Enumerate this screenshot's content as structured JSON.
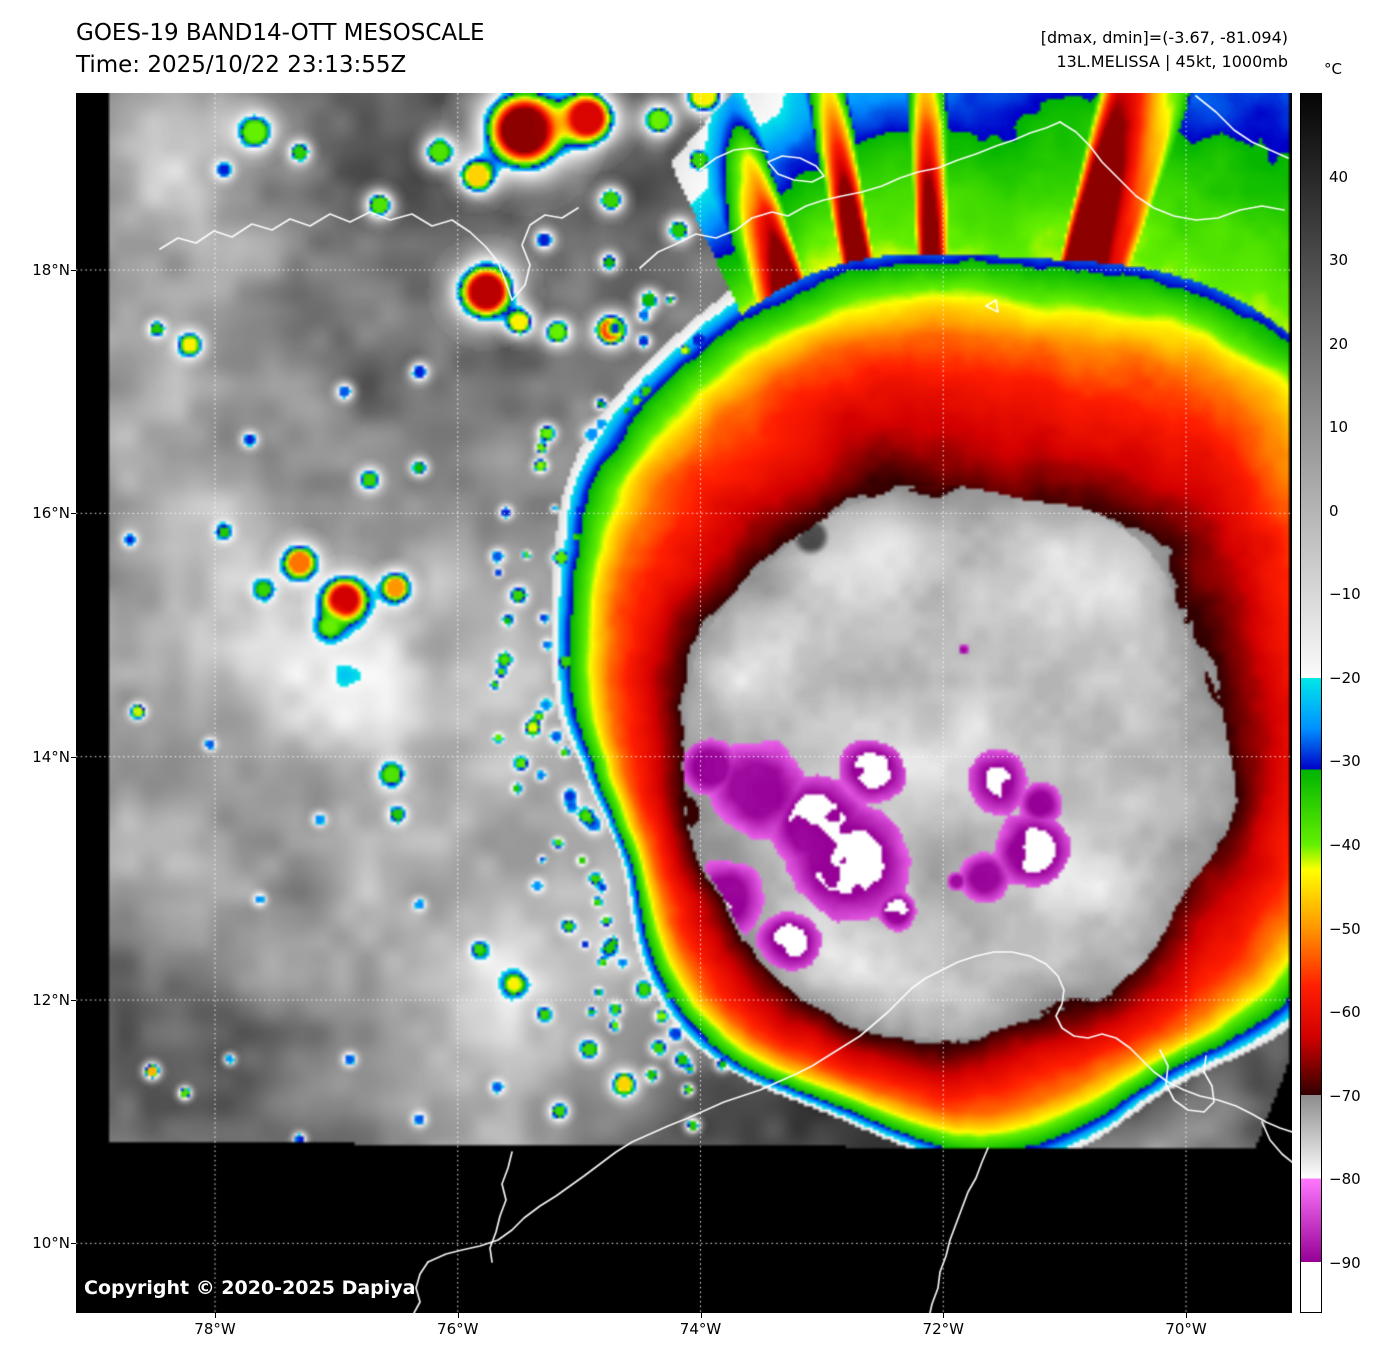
{
  "header": {
    "title": "GOES-19 BAND14-OTT MESOSCALE",
    "time": "Time: 2025/10/22 23:13:55Z",
    "range_info": "[dmax, dmin]=(-3.67, -81.094)",
    "storm_info": "13L.MELISSA | 45kt, 1000mb"
  },
  "colorbar": {
    "unit": "°C",
    "vmax": 50,
    "vmin": -96,
    "ticks": [
      {
        "label": "40",
        "value": 40
      },
      {
        "label": "30",
        "value": 30
      },
      {
        "label": "20",
        "value": 20
      },
      {
        "label": "10",
        "value": 10
      },
      {
        "label": "0",
        "value": 0
      },
      {
        "label": "−10",
        "value": -10
      },
      {
        "label": "−20",
        "value": -20
      },
      {
        "label": "−30",
        "value": -30
      },
      {
        "label": "−40",
        "value": -40
      },
      {
        "label": "−50",
        "value": -50
      },
      {
        "label": "−60",
        "value": -60
      },
      {
        "label": "−70",
        "value": -70
      },
      {
        "label": "−80",
        "value": -80
      },
      {
        "label": "−90",
        "value": -90
      }
    ],
    "stops": [
      {
        "t": 50,
        "c": "#050505"
      },
      {
        "t": -20,
        "c": "#fbfbfb"
      },
      {
        "t": -20,
        "c": "#00e8e8"
      },
      {
        "t": -26,
        "c": "#0092ff"
      },
      {
        "t": -31,
        "c": "#0000c8"
      },
      {
        "t": -31,
        "c": "#00b400"
      },
      {
        "t": -40,
        "c": "#64f000"
      },
      {
        "t": -43,
        "c": "#ffff00"
      },
      {
        "t": -50,
        "c": "#ff9600"
      },
      {
        "t": -57,
        "c": "#ff1e00"
      },
      {
        "t": -63,
        "c": "#d20000"
      },
      {
        "t": -70,
        "c": "#320000"
      },
      {
        "t": -70,
        "c": "#8c8c8c"
      },
      {
        "t": -80,
        "c": "#ffffff"
      },
      {
        "t": -80,
        "c": "#ff78ff"
      },
      {
        "t": -90,
        "c": "#960096"
      },
      {
        "t": -90,
        "c": "#ffffff"
      },
      {
        "t": -96,
        "c": "#ffffff"
      }
    ]
  },
  "axes": {
    "lat_ticks": [
      {
        "label": "18°N",
        "value": 18
      },
      {
        "label": "16°N",
        "value": 16
      },
      {
        "label": "14°N",
        "value": 14
      },
      {
        "label": "12°N",
        "value": 12
      },
      {
        "label": "10°N",
        "value": 10
      }
    ],
    "lon_ticks": [
      {
        "label": "78°W",
        "value": 78
      },
      {
        "label": "76°W",
        "value": 76
      },
      {
        "label": "74°W",
        "value": 74
      },
      {
        "label": "72°W",
        "value": 72
      },
      {
        "label": "70°W",
        "value": 70
      }
    ]
  },
  "map": {
    "copyright": "Copyright © 2020-2025 Dapiya"
  }
}
